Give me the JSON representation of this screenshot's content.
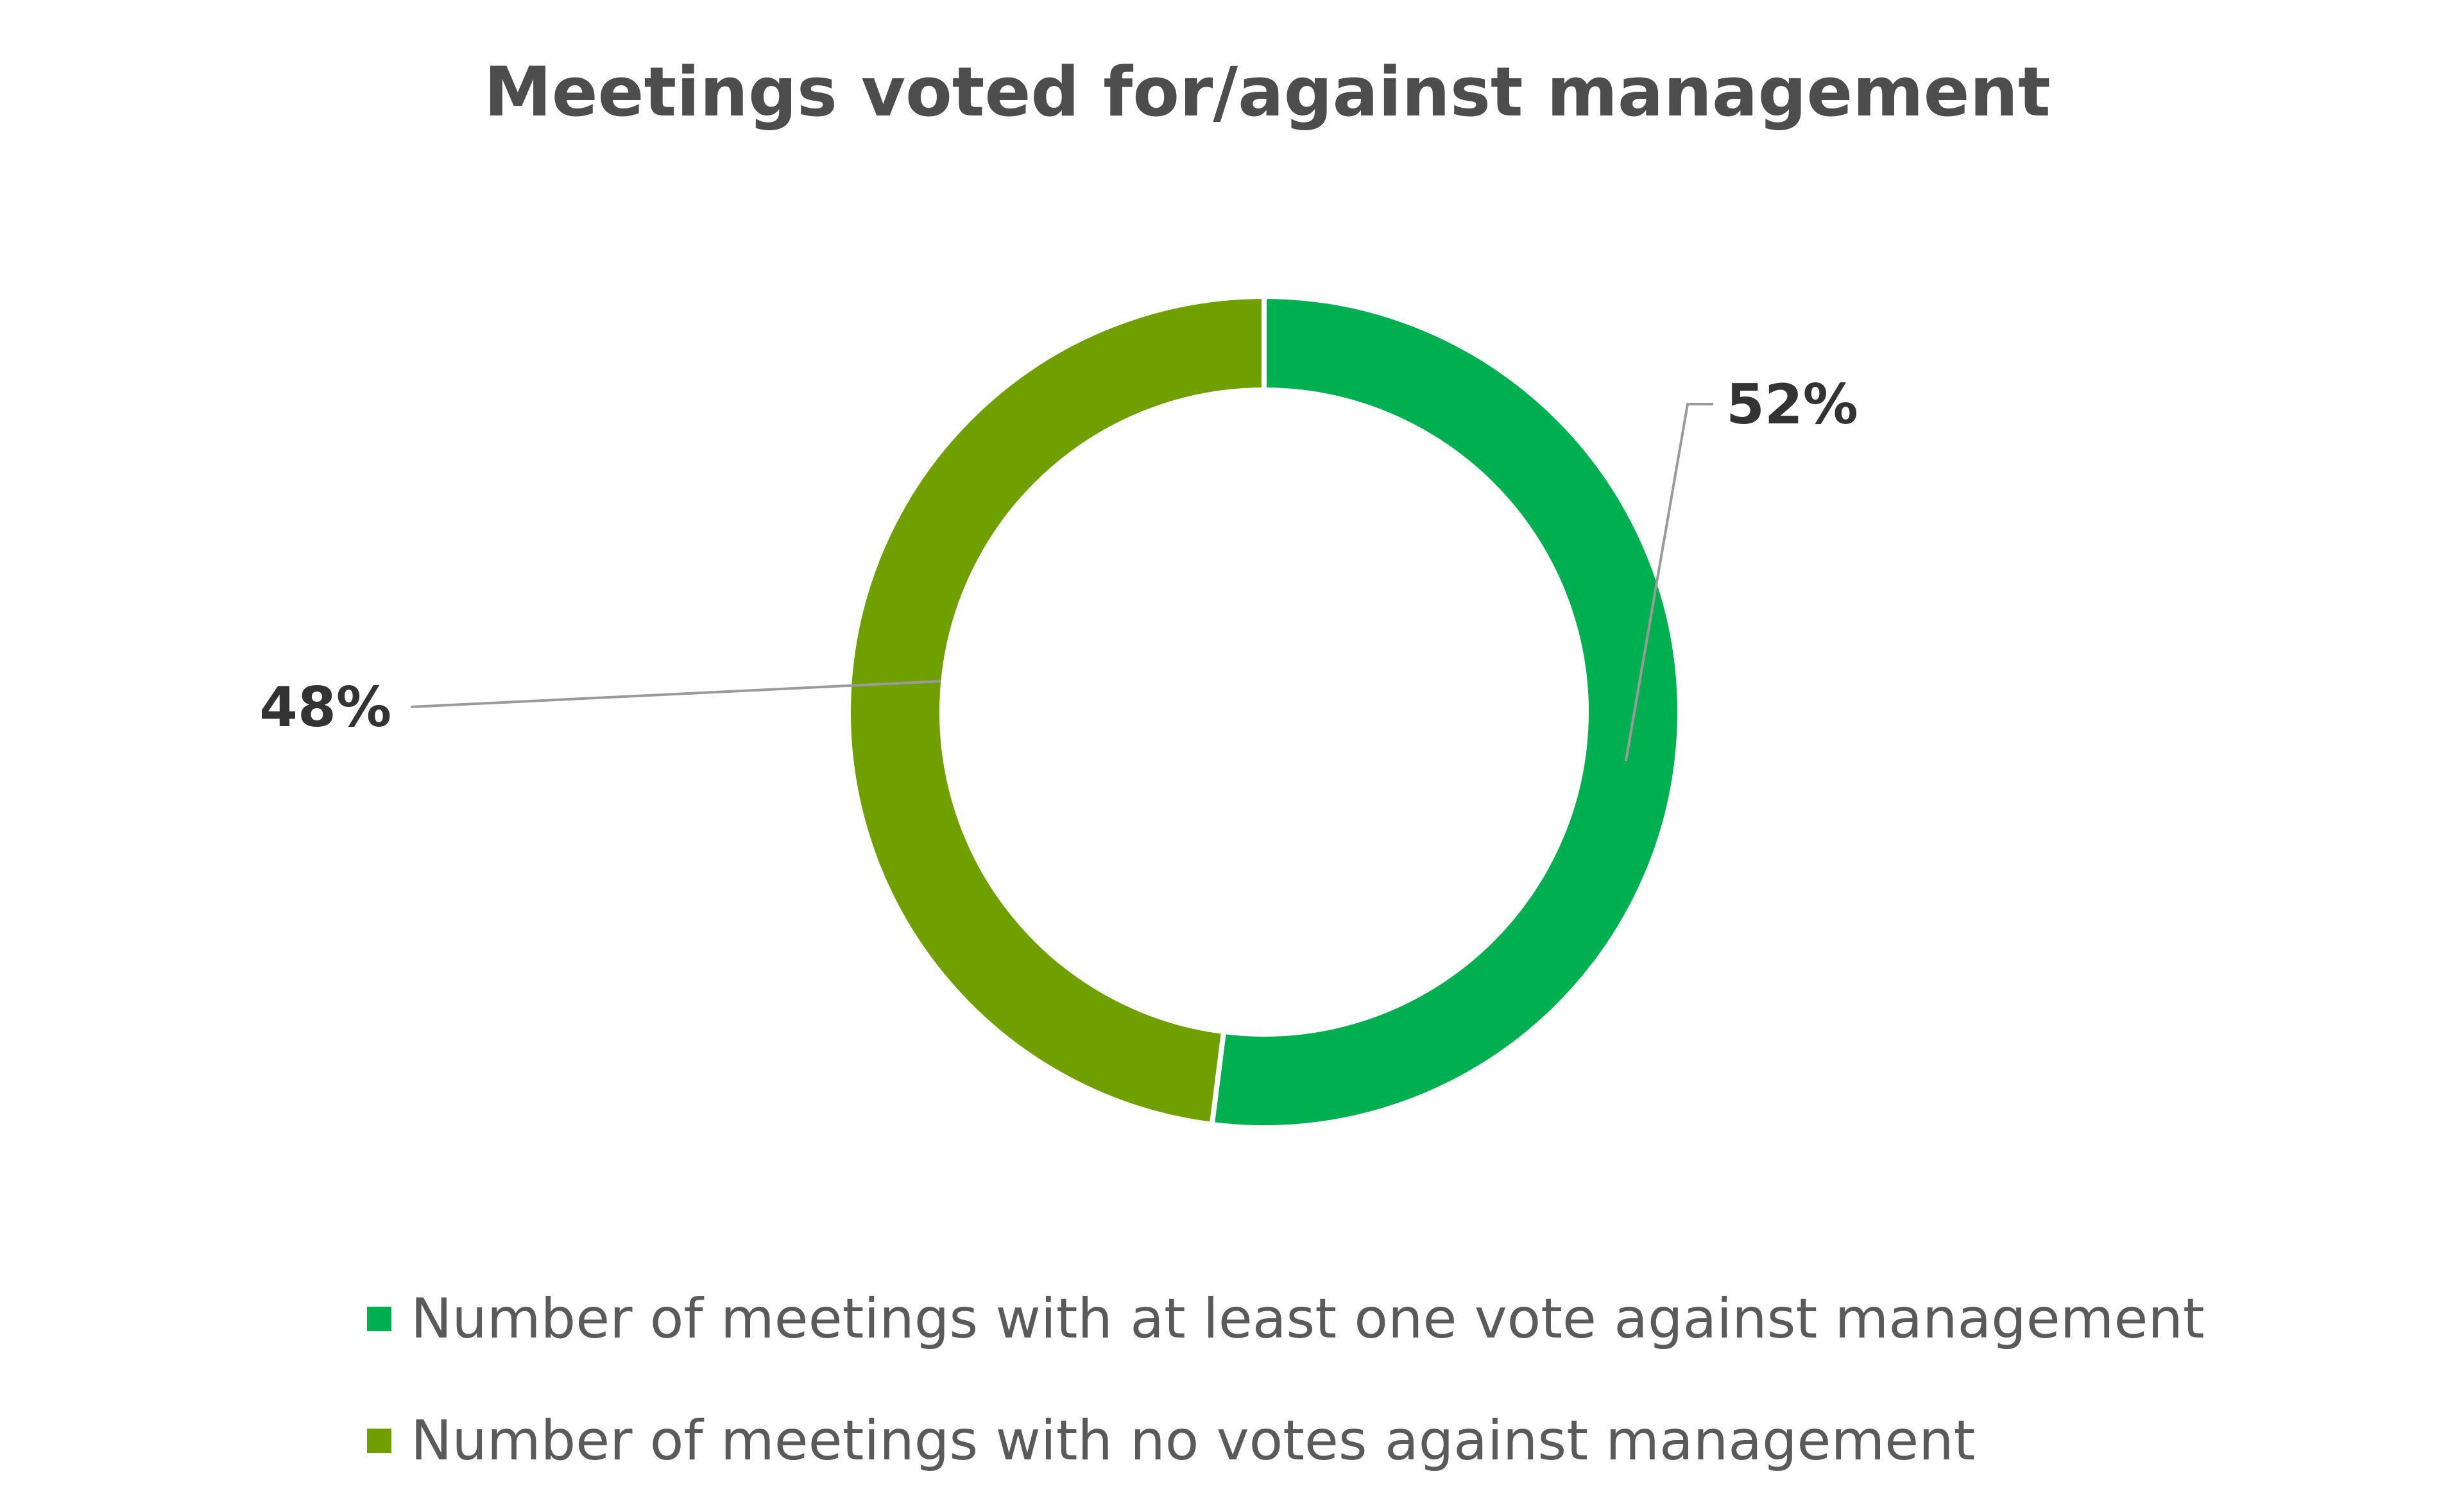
{
  "chart_data": {
    "type": "pie",
    "variant": "donut",
    "title": "Meetings voted for/against management",
    "unit": "%",
    "start_angle_deg": 0,
    "direction": "clockwise",
    "series": [
      {
        "name": "Number of meetings with at least one vote against management",
        "value": 52,
        "label": "52%",
        "color": "#00b050"
      },
      {
        "name": "Number of meetings with no votes against management",
        "value": 48,
        "label": "48%",
        "color": "#70a000"
      }
    ],
    "legend": {
      "position": "bottom"
    }
  }
}
